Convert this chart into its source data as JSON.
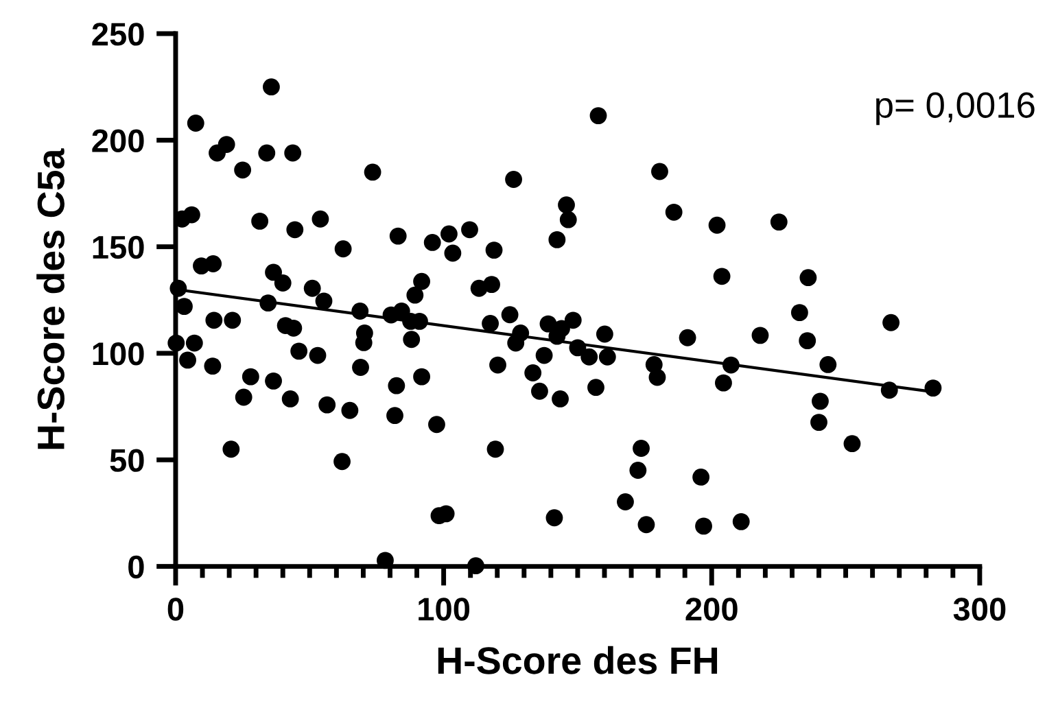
{
  "chart_data": {
    "type": "scatter",
    "xlabel": "H-Score des FH",
    "ylabel": "H-Score des C5a",
    "xlim": [
      0,
      300
    ],
    "xticks": [
      0,
      100,
      200,
      300
    ],
    "ylim": [
      0,
      250
    ],
    "yticks": [
      0,
      50,
      100,
      150,
      200,
      250
    ],
    "grid": false,
    "legend": false,
    "marker": "circle",
    "annotations": [
      "p= 0,0016"
    ],
    "series": [
      {
        "color": "#000000",
        "x": [
          35.7,
          7.5,
          15.5,
          19,
          25,
          34,
          43.7,
          73.5,
          2.4,
          6,
          31.4,
          44.5,
          54,
          83,
          62.5,
          95.8,
          102,
          103.4,
          9.6,
          14,
          36.5,
          40,
          51,
          55.3,
          1,
          3.2,
          34.5,
          68.8,
          80.4,
          84.3,
          89.3,
          91.8,
          14.3,
          21.2,
          41,
          44,
          87.7,
          91,
          70.5,
          70.2,
          88,
          0.2,
          7,
          4.5,
          13.8,
          46,
          53,
          69,
          28,
          36.5,
          91.8,
          25.4,
          42.8,
          82.4,
          56.5,
          65,
          81.8,
          97.4,
          20.7,
          62.1,
          98.3,
          100.9,
          78.2,
          157.7,
          126.1,
          180.6,
          185.9,
          202,
          145.8,
          146.5,
          142.3,
          203.8,
          109.7,
          118.8,
          113.2,
          117.9,
          117.4,
          124.7,
          128.7,
          126.9,
          139,
          144,
          148.3,
          142.3,
          150,
          154.3,
          160.1,
          161.1,
          120.2,
          137.5,
          133.3,
          135.8,
          143.5,
          156.8,
          191,
          178.5,
          179.7,
          207.2,
          204.4,
          119.3,
          173.7,
          172.5,
          196,
          167.8,
          175.6,
          197,
          211,
          141.3,
          112,
          225.1,
          236,
          232.8,
          218.1,
          235.7,
          266.9,
          243.4,
          240.5,
          240,
          252.4,
          266.3,
          282.6
        ],
        "values": [
          225,
          208,
          194,
          198,
          186,
          194,
          194,
          185,
          163,
          165,
          162,
          158,
          163,
          155,
          149,
          152,
          156,
          147,
          141,
          142,
          138,
          133,
          130.5,
          124.5,
          130.5,
          122,
          123.6,
          119.8,
          118,
          119.8,
          127.3,
          133.7,
          115.5,
          115.5,
          113,
          111.8,
          115,
          115,
          109.5,
          105,
          106.5,
          104.8,
          104.8,
          96.8,
          94,
          101,
          99,
          93.4,
          89,
          87,
          89,
          79.4,
          78.6,
          84.8,
          75.8,
          73.2,
          70.8,
          66.6,
          55,
          49.2,
          23.8,
          24.7,
          2.8,
          211.5,
          181.6,
          185.3,
          166.2,
          160.1,
          169.6,
          162.7,
          153.3,
          136.1,
          158,
          148.4,
          130.5,
          132.3,
          114,
          118.1,
          109.5,
          104.8,
          113.8,
          111.6,
          115.5,
          108,
          102.6,
          98.3,
          109,
          98.3,
          94.5,
          99,
          90.8,
          82.2,
          78.6,
          84,
          107.3,
          94.7,
          88.7,
          94.5,
          86.1,
          55,
          55.4,
          45.1,
          41.9,
          30.3,
          19.6,
          18.9,
          21,
          22.8,
          0.3,
          161.6,
          135.5,
          119.1,
          108.4,
          105.9,
          114.4,
          94.7,
          77.5,
          67.6,
          57.6,
          82.7,
          83.7
        ]
      },
      {
        "type": "line",
        "color": "#000000",
        "x": [
          0,
          282
        ],
        "values": [
          130,
          82
        ],
        "marker": "none"
      }
    ]
  }
}
